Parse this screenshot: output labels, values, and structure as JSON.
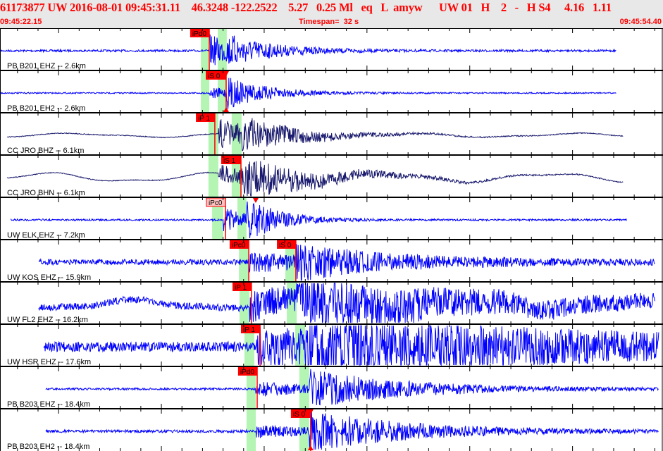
{
  "header": {
    "title": "61173877 UW 2016-08-01 09:45:31.11    46.3248 -122.2522    5.27   0.25 Ml   eq   L  amyw      UW 01   H    2   -   H S4     4.16   1.11",
    "start_time": "09:45:22.15",
    "timespan_label": "Timespan=  32 s",
    "end_time": "09:45:54.40"
  },
  "colors": {
    "header_bg": "#e8e8e8",
    "header_text": "#ff0000",
    "trace_blue": "#0000ff",
    "trace_navy": "#1a1a6e",
    "pick": "#ff0000",
    "pick_pending": "#ffc0c0",
    "window": "#b4f5b4"
  },
  "traces": [
    {
      "label": "PB B201 EHZ -- 2.6km",
      "color": "trace_blue",
      "windows": [
        [
          "09:45:31.92",
          "09:45:32.33"
        ],
        [
          "09:45:32.74",
          "09:45:33.18"
        ]
      ],
      "picks": [
        {
          "label": "iPd0",
          "time": "09:45:32.33",
          "flag_start": "09:45:31.40",
          "pending": false
        }
      ]
    },
    {
      "label": "PB B201 EH2 -- 2.6km",
      "color": "trace_blue",
      "windows": [
        [
          "09:45:31.92",
          "09:45:32.33"
        ],
        [
          "09:45:32.74",
          "09:45:33.18"
        ]
      ],
      "picks": [
        {
          "label": "iS 0",
          "time": "09:45:33.15",
          "flag_start": "09:45:32.16",
          "pending": false,
          "marker": true
        }
      ]
    },
    {
      "label": "CC JRO BHZ -- 6.1km",
      "color": "trace_navy",
      "windows": [
        [
          "09:45:32.29",
          "09:45:32.77"
        ],
        [
          "09:45:33.42",
          "09:45:33.90"
        ]
      ],
      "picks": [
        {
          "label": "iP 1",
          "time": "09:45:32.60",
          "flag_start": "09:45:31.68",
          "pending": false
        }
      ]
    },
    {
      "label": "CC JRO BHN -- 6.1km",
      "color": "trace_navy",
      "windows": [
        [
          "09:45:32.29",
          "09:45:32.77"
        ],
        [
          "09:45:33.42",
          "09:45:33.90"
        ]
      ],
      "picks": [
        {
          "label": "iS 1",
          "time": "09:45:33.87",
          "flag_start": "09:45:32.91",
          "pending": false
        }
      ]
    },
    {
      "label": "UW ELK EHZ -- 7.2km",
      "color": "trace_blue",
      "windows": [
        [
          "09:45:32.47",
          "09:45:33.01"
        ],
        [
          "09:45:33.70",
          "09:45:34.14"
        ]
      ],
      "picks": [
        {
          "label": "iPc0",
          "time": "09:45:33.12",
          "flag_start": "09:45:32.19",
          "pending": true
        }
      ],
      "marker_time": "09:45:34.59"
    },
    {
      "label": "UW KOS EHZ -- 15.9km",
      "color": "trace_blue",
      "windows": [
        [
          "09:45:33.77",
          "09:45:34.25"
        ],
        [
          "09:45:36.03",
          "09:45:36.54"
        ]
      ],
      "picks": [
        {
          "label": "iPc0",
          "time": "09:45:34.25",
          "flag_start": "09:45:33.32",
          "pending": false
        },
        {
          "label": "iS 0",
          "time": "09:45:36.54",
          "flag_start": "09:45:35.62",
          "pending": false
        }
      ]
    },
    {
      "label": "UW FL2 EHZ -- 16.2km",
      "color": "trace_blue",
      "windows": [
        [
          "09:45:33.80",
          "09:45:34.28"
        ],
        [
          "09:45:36.10",
          "09:45:36.58"
        ]
      ],
      "picks": [
        {
          "label": "iP 1",
          "time": "09:45:34.38",
          "flag_start": "09:45:33.46",
          "pending": false
        }
      ]
    },
    {
      "label": "UW HSR EHZ -- 17.6km",
      "color": "trace_blue",
      "windows": [
        [
          "09:45:34.04",
          "09:45:34.52"
        ],
        [
          "09:45:36.51",
          "09:45:36.99"
        ]
      ],
      "picks": [
        {
          "label": "iP 1",
          "time": "09:45:34.80",
          "flag_start": "09:45:33.87",
          "pending": false
        }
      ]
    },
    {
      "label": "PB B203 EHZ -- 18.4km",
      "color": "trace_blue",
      "windows": [
        [
          "09:45:34.14",
          "09:45:34.59"
        ],
        [
          "09:45:36.71",
          "09:45:37.19"
        ]
      ],
      "picks": [
        {
          "label": "iPd0",
          "time": "09:45:34.66",
          "flag_start": "09:45:33.73",
          "pending": false
        }
      ]
    },
    {
      "label": "PB B203 EH2 -- 18.4km",
      "color": "trace_blue",
      "windows": [
        [
          "09:45:34.14",
          "09:45:34.59"
        ],
        [
          "09:45:36.71",
          "09:45:37.19"
        ]
      ],
      "picks": [
        {
          "label": "iS 0",
          "time": "09:45:37.26",
          "flag_start": "09:45:36.30",
          "pending": false,
          "marker": true
        }
      ]
    }
  ]
}
